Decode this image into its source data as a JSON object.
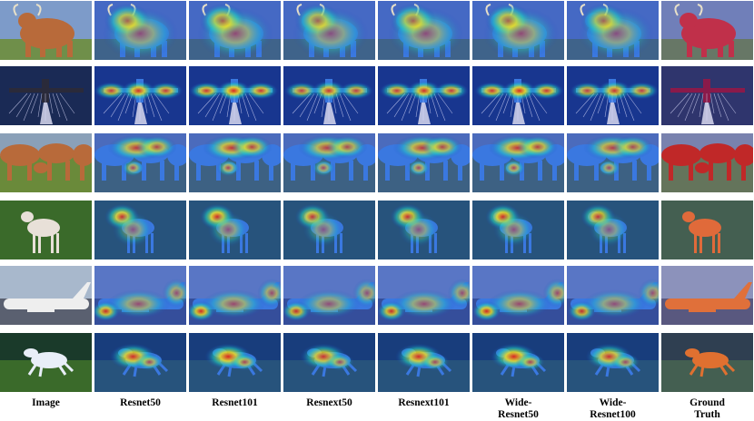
{
  "columns": [
    {
      "key": "image",
      "label": "Image"
    },
    {
      "key": "resnet50",
      "label": "Resnet50"
    },
    {
      "key": "resnet101",
      "label": "Resnet101"
    },
    {
      "key": "resnext50",
      "label": "Resnext50"
    },
    {
      "key": "resnext101",
      "label": "Resnext101"
    },
    {
      "key": "wide_resnet50",
      "label": "Wide-\nResnet50"
    },
    {
      "key": "wide_resnet100",
      "label": "Wide-\nResnet100"
    },
    {
      "key": "ground_truth",
      "label": "Ground\nTruth"
    }
  ],
  "rows": [
    {
      "subject": "highland-cow",
      "mask_color": "#c0304a"
    },
    {
      "subject": "airplane-flares",
      "mask_color": "#8a1a4a"
    },
    {
      "subject": "cows",
      "mask_color": "#c02828"
    },
    {
      "subject": "sheep",
      "mask_color": "#e06a3a"
    },
    {
      "subject": "airliner",
      "mask_color": "#e0703a"
    },
    {
      "subject": "horse",
      "mask_color": "#e07030"
    }
  ],
  "colors": {
    "heatmap_hot": "#e0201a",
    "heatmap_warm": "#f0e020",
    "heatmap_mid": "#20d0c0",
    "heatmap_cool": "#1840c0"
  }
}
